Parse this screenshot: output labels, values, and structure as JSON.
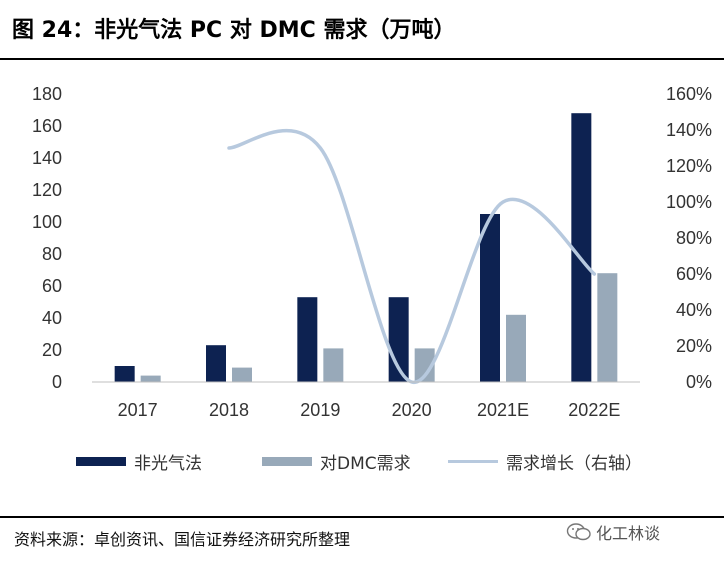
{
  "header": {
    "title": "图 24：非光气法 PC 对 DMC 需求（万吨）"
  },
  "footer": {
    "source": "资料来源：卓创资讯、国信证券经济研究所整理",
    "brand": "化工林谈"
  },
  "colors": {
    "bar1": "#0d2251",
    "bar2": "#98a9b9",
    "line": "#b7c9de",
    "text": "#333333"
  },
  "chart_data": {
    "type": "bar",
    "categories": [
      "2017",
      "2018",
      "2019",
      "2020",
      "2021E",
      "2022E"
    ],
    "series": [
      {
        "name": "非光气法",
        "kind": "bar",
        "axis": "left",
        "values": [
          10,
          23,
          53,
          53,
          105,
          168
        ]
      },
      {
        "name": "对DMC需求",
        "kind": "bar",
        "axis": "left",
        "values": [
          4,
          9,
          21,
          21,
          42,
          68
        ]
      },
      {
        "name": "需求增长（右轴）",
        "kind": "line",
        "axis": "right",
        "values": [
          null,
          130,
          130,
          0,
          100,
          60
        ]
      }
    ],
    "yleft": {
      "range": [
        0,
        180
      ],
      "ticks": [
        "0",
        "20",
        "40",
        "60",
        "80",
        "100",
        "120",
        "140",
        "160",
        "180"
      ]
    },
    "yright": {
      "range": [
        0,
        160
      ],
      "ticks": [
        "0%",
        "20%",
        "40%",
        "60%",
        "80%",
        "100%",
        "120%",
        "140%",
        "160%"
      ]
    },
    "legend": [
      "非光气法",
      "对DMC需求",
      "需求增长（右轴）"
    ],
    "legend_position": "bottom",
    "grid": false
  }
}
